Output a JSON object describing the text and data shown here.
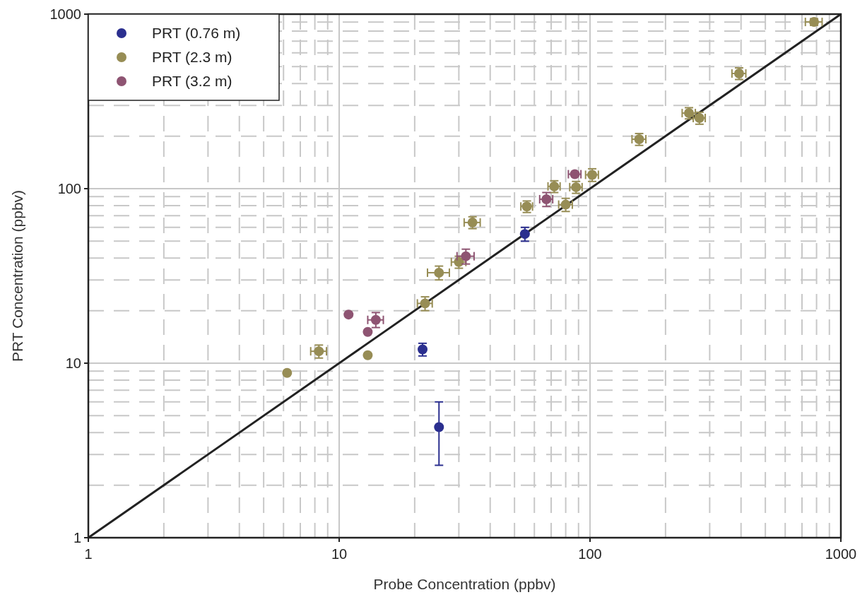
{
  "chart_data": {
    "type": "scatter",
    "xlabel": "Probe Concentration (ppbv)",
    "ylabel": "PRT Concentration (ppbv)",
    "log": "xy",
    "grid": true,
    "legend": "top left",
    "marker": "circle",
    "xlim": [
      1,
      1000
    ],
    "ylim": [
      1,
      1000
    ],
    "xticks": [
      1,
      {
        "value": 2,
        "label": null
      },
      {
        "value": 3,
        "label": null
      },
      {
        "value": 4,
        "label": null
      },
      {
        "value": 5,
        "label": null
      },
      {
        "value": 6,
        "label": null
      },
      {
        "value": 7,
        "label": null
      },
      {
        "value": 8,
        "label": null
      },
      {
        "value": 9,
        "label": null
      },
      10,
      {
        "value": 20,
        "label": null
      },
      {
        "value": 30,
        "label": null
      },
      {
        "value": 40,
        "label": null
      },
      {
        "value": 50,
        "label": null
      },
      {
        "value": 60,
        "label": null
      },
      {
        "value": 70,
        "label": null
      },
      {
        "value": 80,
        "label": null
      },
      {
        "value": 90,
        "label": null
      },
      100,
      {
        "value": 200,
        "label": null
      },
      {
        "value": 300,
        "label": null
      },
      {
        "value": 400,
        "label": null
      },
      {
        "value": 500,
        "label": null
      },
      {
        "value": 600,
        "label": null
      },
      {
        "value": 700,
        "label": null
      },
      {
        "value": 800,
        "label": null
      },
      {
        "value": 900,
        "label": null
      },
      1000
    ],
    "yticks": [
      1,
      {
        "value": 2,
        "label": null
      },
      {
        "value": 3,
        "label": null
      },
      {
        "value": 4,
        "label": null
      },
      {
        "value": 5,
        "label": null
      },
      {
        "value": 6,
        "label": null
      },
      {
        "value": 7,
        "label": null
      },
      {
        "value": 8,
        "label": null
      },
      {
        "value": 9,
        "label": null
      },
      10,
      {
        "value": 20,
        "label": null
      },
      {
        "value": 30,
        "label": null
      },
      {
        "value": 40,
        "label": null
      },
      {
        "value": 50,
        "label": null
      },
      {
        "value": 60,
        "label": null
      },
      {
        "value": 70,
        "label": null
      },
      {
        "value": 80,
        "label": null
      },
      {
        "value": 90,
        "label": null
      },
      100,
      {
        "value": 200,
        "label": null
      },
      {
        "value": 300,
        "label": null
      },
      {
        "value": 400,
        "label": null
      },
      {
        "value": 500,
        "label": null
      },
      {
        "value": 600,
        "label": null
      },
      {
        "value": 700,
        "label": null
      },
      {
        "value": 800,
        "label": null
      },
      {
        "value": 900,
        "label": null
      },
      1000
    ],
    "series": [
      {
        "type": "line",
        "marker": "none",
        "color": "#222222",
        "x": [
          1,
          1000
        ],
        "values": [
          1,
          1000
        ]
      },
      {
        "name": "PRT (0.76 m)",
        "color": "#2b2f8f",
        "x": [
          55,
          21.5,
          25
        ],
        "values": [
          55,
          12,
          4.3
        ],
        "errors": [
          5,
          1,
          [
            2.6,
            6
          ]
        ],
        "xerrors": [
          null,
          null,
          null
        ]
      },
      {
        "name": "PRT (2.3 m)",
        "color": "#978d55",
        "x": [
          6.2,
          8.3,
          13,
          22,
          25,
          30,
          34,
          56,
          72,
          80,
          88,
          102,
          157,
          248,
          273,
          393,
          782
        ],
        "values": [
          8.8,
          11.7,
          11.1,
          22,
          33,
          38,
          64,
          79,
          103,
          81,
          102,
          120,
          192,
          271,
          254,
          457,
          902
        ],
        "errors": [
          null,
          1,
          null,
          2,
          3,
          3,
          5,
          6,
          8,
          7,
          8,
          10,
          15,
          20,
          20,
          35,
          40
        ],
        "xerrors": [
          null,
          0.6,
          null,
          1.5,
          2.5,
          2,
          2.5,
          3,
          4,
          5,
          5,
          6,
          10,
          15,
          15,
          25,
          60
        ]
      },
      {
        "name": "PRT (3.2 m)",
        "color": "#8e5472",
        "x": [
          10.9,
          13,
          14,
          32,
          67,
          87
        ],
        "values": [
          19,
          15.1,
          17.7,
          41,
          87,
          121
        ],
        "errors": [
          null,
          null,
          [
            16,
            19.5
          ],
          4,
          8,
          null
        ],
        "xerrors": [
          null,
          null,
          1,
          2.5,
          4,
          5
        ]
      }
    ]
  }
}
